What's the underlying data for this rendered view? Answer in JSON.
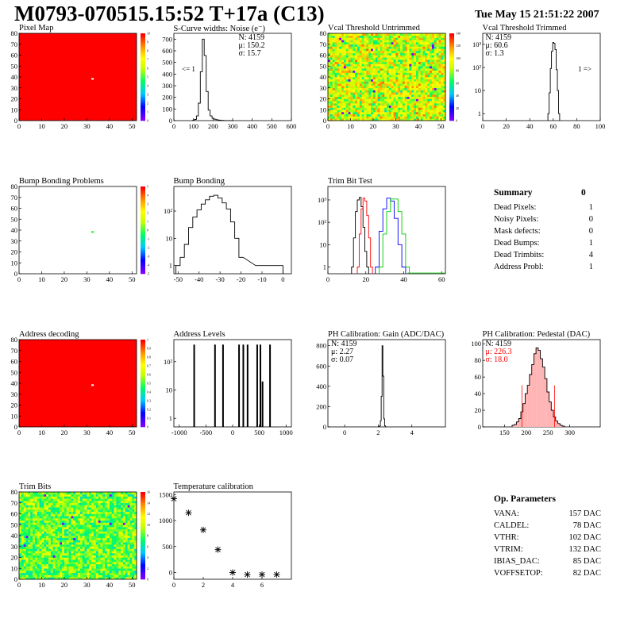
{
  "header": {
    "title": "M0793-070515.15:52 T+17a (C13)",
    "date": "Tue May 15 21:51:22 2007"
  },
  "colors": {
    "frame": "#000000",
    "red": "#ff0000",
    "green": "#00cc00",
    "blue": "#0000ff",
    "pink_fill": "#ffb3b3"
  },
  "chart_data": [
    {
      "id": "pixel_map",
      "type": "heatmap",
      "title": "Pixel Map",
      "xticks": [
        "0",
        "10",
        "20",
        "30",
        "40",
        "50"
      ],
      "yticks": [
        "0",
        "10",
        "20",
        "30",
        "40",
        "50",
        "60",
        "70",
        "80"
      ],
      "zticks": [
        "0",
        "1",
        "2",
        "3",
        "4",
        "5",
        "6",
        "7",
        "8",
        "9",
        "10"
      ],
      "xlim": [
        0,
        52
      ],
      "ylim": [
        0,
        80
      ],
      "fill_value": 10,
      "special_pixel": {
        "col": 32,
        "row": 38,
        "value": 0
      }
    },
    {
      "id": "scurve_noise",
      "type": "line",
      "title": "S-Curve widths: Noise (e⁻)",
      "xticks": [
        "0",
        "100",
        "200",
        "300",
        "400",
        "500",
        "600"
      ],
      "yticks": [
        "0",
        "100",
        "200",
        "300",
        "400",
        "500",
        "600",
        "700"
      ],
      "xlim": [
        0,
        600
      ],
      "ylim": [
        0,
        750
      ],
      "stats": [
        "N: 4159",
        "μ: 150.2",
        "σ: 15.7"
      ],
      "annotation": "<= 1",
      "x": [
        100,
        110,
        120,
        130,
        140,
        150,
        160,
        170,
        180,
        190,
        200,
        210,
        220,
        230,
        240,
        250,
        260,
        270,
        280,
        290,
        300
      ],
      "y": [
        2,
        10,
        40,
        150,
        420,
        700,
        560,
        250,
        90,
        40,
        20,
        12,
        8,
        5,
        3,
        2,
        1,
        1,
        0,
        1,
        0
      ]
    },
    {
      "id": "vcal_untrimmed",
      "type": "heatmap",
      "title": "Vcal Threshold Untrimmed",
      "xticks": [
        "0",
        "10",
        "20",
        "30",
        "40",
        "50"
      ],
      "yticks": [
        "0",
        "10",
        "20",
        "30",
        "40",
        "50",
        "60",
        "70",
        "80"
      ],
      "zticks": [
        "0",
        "20",
        "40",
        "60",
        "80",
        "100",
        "120",
        "140"
      ],
      "xlim": [
        0,
        52
      ],
      "ylim": [
        0,
        80
      ],
      "value_range": [
        60,
        120
      ]
    },
    {
      "id": "vcal_trimmed",
      "type": "line",
      "title": "Vcal Threshold Trimmed",
      "log_y": true,
      "xticks": [
        "0",
        "20",
        "40",
        "60",
        "80",
        "100"
      ],
      "yticks": [
        "1",
        "10",
        "10²",
        "10³"
      ],
      "xlim": [
        0,
        100
      ],
      "ylim": [
        0.5,
        3000
      ],
      "stats": [
        "N: 4159",
        "μ: 60.6",
        "σ: 1.3"
      ],
      "annotation": "1 =>",
      "x": [
        56,
        57,
        58,
        59,
        60,
        61,
        62,
        63,
        64,
        65
      ],
      "y": [
        1,
        8,
        90,
        500,
        1200,
        1100,
        600,
        80,
        10,
        1
      ]
    },
    {
      "id": "bump_bonding_problems",
      "type": "heatmap",
      "title": "Bump Bonding Problems",
      "xticks": [
        "0",
        "10",
        "20",
        "30",
        "40",
        "50"
      ],
      "yticks": [
        "0",
        "10",
        "20",
        "30",
        "40",
        "50",
        "60",
        "70",
        "80"
      ],
      "zticks": [
        "-5",
        "-4",
        "-3",
        "-2",
        "-1",
        "0",
        "1",
        "2",
        "3",
        "4",
        "5"
      ],
      "xlim": [
        0,
        52
      ],
      "ylim": [
        0,
        80
      ],
      "special_pixel": {
        "col": 32,
        "row": 38,
        "value": 1
      }
    },
    {
      "id": "bump_bonding",
      "type": "line",
      "title": "Bump Bonding",
      "log_y": true,
      "xticks": [
        "-50",
        "-40",
        "-30",
        "-20",
        "-10",
        "0"
      ],
      "yticks": [
        "1",
        "10",
        "10²"
      ],
      "xlim": [
        -52,
        4
      ],
      "ylim": [
        0.5,
        800
      ],
      "x": [
        -50,
        -48,
        -46,
        -44,
        -42,
        -40,
        -38,
        -36,
        -34,
        -32,
        -30,
        -28,
        -26,
        -24,
        -22,
        -20,
        -12,
        -1
      ],
      "y": [
        1,
        2,
        6,
        25,
        60,
        110,
        180,
        260,
        350,
        380,
        300,
        200,
        120,
        40,
        10,
        2,
        1,
        1
      ]
    },
    {
      "id": "trim_bit_test",
      "type": "line",
      "title": "Trim Bit Test",
      "log_y": true,
      "xticks": [
        "0",
        "20",
        "40",
        "60"
      ],
      "yticks": [
        "1",
        "10",
        "10²",
        "10³"
      ],
      "xlim": [
        0,
        62
      ],
      "ylim": [
        0.5,
        4000
      ],
      "series": [
        {
          "color": "#000000",
          "x": [
            13,
            14,
            15,
            16,
            17,
            18,
            19,
            20,
            21
          ],
          "y": [
            1,
            20,
            300,
            1000,
            1300,
            500,
            60,
            5,
            1
          ]
        },
        {
          "color": "#ff0000",
          "x": [
            16,
            17,
            18,
            19,
            20,
            21,
            22,
            23
          ],
          "y": [
            1,
            30,
            400,
            1200,
            900,
            200,
            20,
            1
          ]
        },
        {
          "color": "#0000ff",
          "x": [
            26,
            28,
            30,
            32,
            34,
            36,
            38,
            40
          ],
          "y": [
            1,
            40,
            400,
            1200,
            900,
            150,
            10,
            1
          ]
        },
        {
          "color": "#00cc00",
          "x": [
            28,
            30,
            32,
            34,
            36,
            38,
            40,
            42
          ],
          "y": [
            1,
            30,
            300,
            1100,
            1100,
            300,
            30,
            1
          ]
        }
      ]
    },
    {
      "id": "address_decoding",
      "type": "heatmap",
      "title": "Address decoding",
      "xticks": [
        "0",
        "10",
        "20",
        "30",
        "40",
        "50"
      ],
      "yticks": [
        "0",
        "10",
        "20",
        "30",
        "40",
        "50",
        "60",
        "70",
        "80"
      ],
      "zticks": [
        "0",
        "0.1",
        "0.2",
        "0.3",
        "0.4",
        "0.5",
        "0.6",
        "0.7",
        "0.8",
        "0.9",
        "1"
      ],
      "xlim": [
        0,
        52
      ],
      "ylim": [
        0,
        80
      ],
      "fill_value": 1,
      "special_pixel": {
        "col": 32,
        "row": 38,
        "value": 0
      }
    },
    {
      "id": "address_levels",
      "type": "bar",
      "title": "Address Levels",
      "log_y": true,
      "xticks": [
        "-1000",
        "-500",
        "0",
        "500",
        "1000"
      ],
      "yticks": [
        "1",
        "10",
        "10²"
      ],
      "xlim": [
        -1100,
        1100
      ],
      "ylim": [
        0.5,
        600
      ],
      "x": [
        -720,
        -330,
        -180,
        120,
        200,
        280,
        460,
        520,
        560,
        700
      ],
      "y": [
        400,
        400,
        400,
        400,
        400,
        400,
        400,
        400,
        20,
        400
      ]
    },
    {
      "id": "ph_gain",
      "type": "line",
      "title": "PH Calibration: Gain (ADC/DAC)",
      "xticks": [
        "0",
        "2",
        "4"
      ],
      "yticks": [
        "0",
        "200",
        "400",
        "600",
        "800"
      ],
      "xlim": [
        -1,
        6
      ],
      "ylim": [
        0,
        860
      ],
      "stats": [
        "N: 4159",
        "μ: 2.27",
        "σ: 0.07"
      ],
      "x": [
        2.05,
        2.1,
        2.15,
        2.2,
        2.25,
        2.3,
        2.35,
        2.4,
        2.45
      ],
      "y": [
        2,
        10,
        60,
        300,
        800,
        500,
        80,
        10,
        1
      ]
    },
    {
      "id": "ph_pedestal",
      "type": "line",
      "title": "PH Calibration: Pedestal (DAC)",
      "xticks": [
        "150",
        "200",
        "250",
        "300"
      ],
      "yticks": [
        "0",
        "20",
        "40",
        "60",
        "80",
        "100"
      ],
      "xlim": [
        100,
        370
      ],
      "ylim": [
        0,
        105
      ],
      "stats": [
        "N: 4159",
        "μ: 226.3",
        "σ: 18.0"
      ],
      "stats_colors": [
        "#000000",
        "#ff0000",
        "#ff0000"
      ],
      "cut_lines": [
        190,
        265
      ],
      "x": [
        170,
        175,
        180,
        185,
        190,
        195,
        200,
        205,
        210,
        215,
        220,
        225,
        230,
        235,
        240,
        245,
        250,
        255,
        260,
        265,
        270,
        275,
        280,
        285
      ],
      "y": [
        2,
        3,
        6,
        10,
        18,
        28,
        40,
        50,
        63,
        75,
        88,
        95,
        92,
        82,
        72,
        58,
        42,
        30,
        20,
        12,
        7,
        4,
        2,
        1
      ]
    },
    {
      "id": "trim_bits",
      "type": "heatmap",
      "title": "Trim Bits",
      "xticks": [
        "0",
        "10",
        "20",
        "30",
        "40",
        "50"
      ],
      "yticks": [
        "0",
        "10",
        "20",
        "30",
        "40",
        "50",
        "60",
        "70",
        "80"
      ],
      "zticks": [
        "0",
        "2",
        "4",
        "6",
        "8",
        "10",
        "12",
        "14",
        "16"
      ],
      "xlim": [
        0,
        52
      ],
      "ylim": [
        0,
        80
      ],
      "value_range": [
        6,
        11
      ]
    },
    {
      "id": "temperature_calibration",
      "type": "scatter",
      "title": "Temperature calibration",
      "xticks": [
        "0",
        "2",
        "4",
        "6"
      ],
      "yticks": [
        "0",
        "500",
        "1000",
        "1500"
      ],
      "xlim": [
        0,
        8
      ],
      "ylim": [
        -130,
        1550
      ],
      "x": [
        0,
        1,
        2,
        3,
        4,
        5,
        6,
        7
      ],
      "y": [
        1420,
        1150,
        820,
        440,
        0,
        -40,
        -40,
        -40
      ]
    }
  ],
  "summary": {
    "title": "Summary",
    "total": "0",
    "rows": [
      {
        "label": "Dead Pixels:",
        "value": "1"
      },
      {
        "label": "Noisy Pixels:",
        "value": "0"
      },
      {
        "label": "Mask defects:",
        "value": "0"
      },
      {
        "label": "Dead Bumps:",
        "value": "1"
      },
      {
        "label": "Dead Trimbits:",
        "value": "4"
      },
      {
        "label": "Address Probl:",
        "value": "1"
      }
    ]
  },
  "op_params": {
    "title": "Op. Parameters",
    "rows": [
      {
        "label": "VANA:",
        "value": "157 DAC"
      },
      {
        "label": "CALDEL:",
        "value": "78 DAC"
      },
      {
        "label": "VTHR:",
        "value": "102 DAC"
      },
      {
        "label": "VTRIM:",
        "value": "132 DAC"
      },
      {
        "label": "IBIAS_DAC:",
        "value": "85 DAC"
      },
      {
        "label": "VOFFSETOP:",
        "value": "82 DAC"
      }
    ]
  }
}
